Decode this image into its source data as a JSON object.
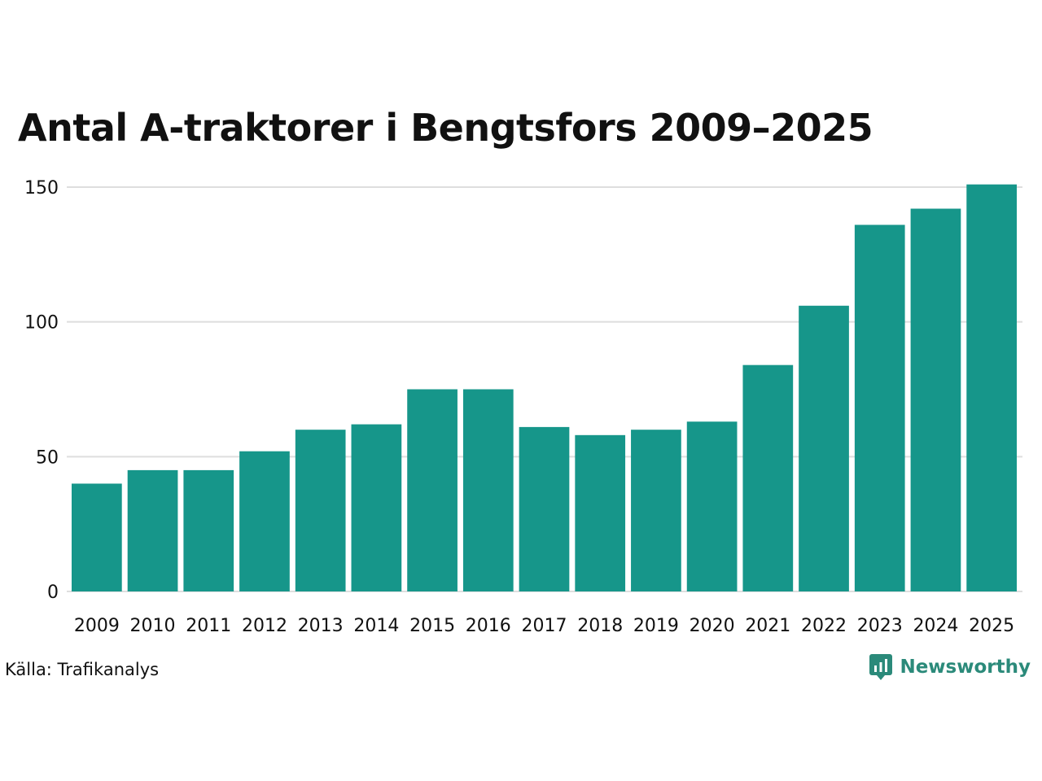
{
  "chart_data": {
    "type": "bar",
    "title": "Antal A-traktorer i Bengtsfors 2009–2025",
    "xlabel": "",
    "ylabel": "",
    "categories": [
      "2009",
      "2010",
      "2011",
      "2012",
      "2013",
      "2014",
      "2015",
      "2016",
      "2017",
      "2018",
      "2019",
      "2020",
      "2021",
      "2022",
      "2023",
      "2024",
      "2025"
    ],
    "values": [
      40,
      45,
      45,
      52,
      60,
      62,
      75,
      75,
      61,
      58,
      60,
      63,
      84,
      106,
      136,
      142,
      151
    ],
    "ylim": [
      0,
      150
    ],
    "yticks": [
      0,
      50,
      100,
      150
    ],
    "grid": true,
    "legend": "none",
    "bar_color": "#16968a"
  },
  "footer": {
    "source": "Källa: Trafikanalys",
    "brand": "Newsworthy",
    "brand_icon": "newsworthy-logo-icon",
    "brand_color": "#2b8a7a"
  }
}
